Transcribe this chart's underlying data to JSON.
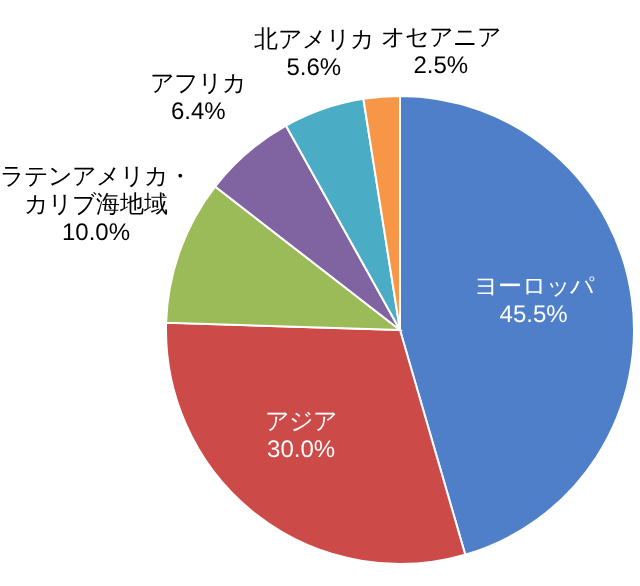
{
  "chart_data": {
    "type": "pie",
    "categories": [
      "ヨーロッパ",
      "アジア",
      "ラテンアメリカ・カリブ海地域",
      "アフリカ",
      "北アメリカ",
      "オセアニア"
    ],
    "values": [
      45.5,
      30.0,
      10.0,
      6.4,
      5.6,
      2.5
    ],
    "value_labels": [
      "45.5%",
      "30.0%",
      "10.0%",
      "6.4%",
      "5.6%",
      "2.5%"
    ],
    "colors": [
      "#4f7fc8",
      "#cc4a47",
      "#9bbb59",
      "#8064a2",
      "#4bacc6",
      "#f79646"
    ],
    "legend": false
  }
}
